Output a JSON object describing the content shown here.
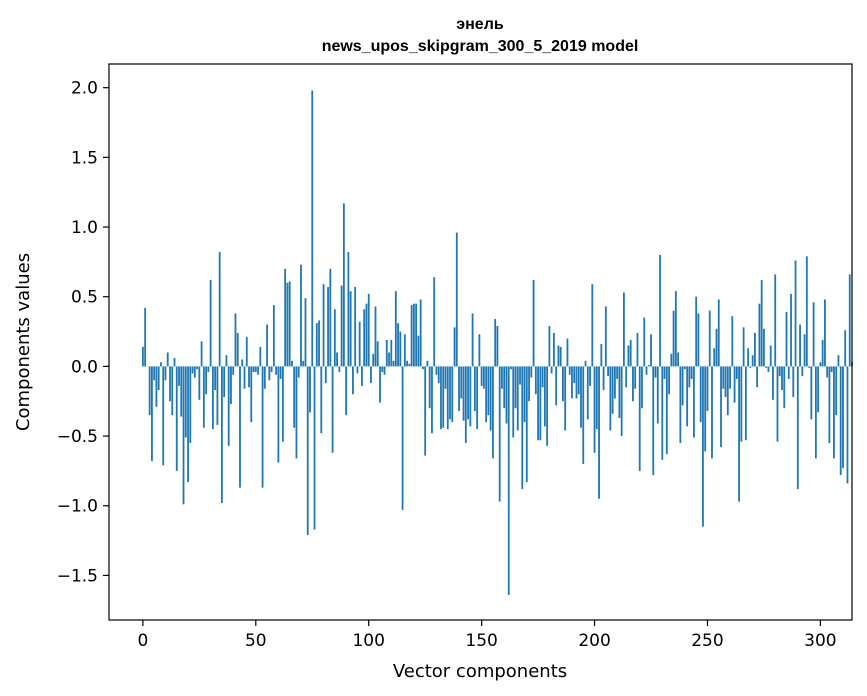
{
  "chart_data": {
    "type": "bar",
    "title_line1": "энель",
    "title_line2": "news_upos_skipgram_300_5_2019 model",
    "xlabel": "Vector components",
    "ylabel": "Components values",
    "xlim": [
      -15,
      314
    ],
    "ylim": [
      -1.82,
      2.17
    ],
    "xticks": [
      0,
      50,
      100,
      150,
      200,
      250,
      300
    ],
    "xtick_labels": [
      "0",
      "50",
      "100",
      "150",
      "200",
      "250",
      "300"
    ],
    "yticks": [
      -1.5,
      -1.0,
      -0.5,
      0.0,
      0.5,
      1.0,
      1.5,
      2.0
    ],
    "ytick_labels": [
      "−1.5",
      "−1.0",
      "−0.5",
      "0.0",
      "0.5",
      "1.0",
      "1.5",
      "2.0"
    ],
    "bar_color": "#1f77b4",
    "grid": false,
    "values": [
      0.14,
      0.42,
      0.0,
      -0.35,
      -0.68,
      -0.1,
      -0.29,
      -0.17,
      0.03,
      -0.71,
      -0.1,
      0.1,
      -0.25,
      -0.35,
      0.06,
      -0.75,
      -0.14,
      -0.36,
      -0.99,
      -0.51,
      -0.83,
      -0.55,
      -0.05,
      -0.08,
      -0.02,
      -0.24,
      0.18,
      -0.44,
      -0.2,
      -0.04,
      0.62,
      -0.45,
      -0.17,
      -0.42,
      0.82,
      -0.98,
      -0.22,
      0.08,
      -0.57,
      -0.27,
      -0.06,
      0.38,
      0.24,
      -0.87,
      0.05,
      -0.16,
      0.21,
      -0.15,
      -0.4,
      -0.04,
      -0.04,
      -0.06,
      0.14,
      -0.87,
      -0.16,
      0.3,
      -0.1,
      -0.04,
      0.44,
      -0.06,
      -0.69,
      -0.09,
      -0.54,
      0.7,
      0.6,
      0.61,
      0.04,
      -0.44,
      -0.66,
      -0.08,
      0.73,
      0.04,
      0.49,
      -1.21,
      -0.33,
      1.98,
      -1.17,
      0.31,
      0.33,
      -0.48,
      0.59,
      -0.12,
      0.57,
      0.7,
      -0.62,
      0.41,
      0.1,
      -0.04,
      0.58,
      1.17,
      -0.35,
      0.82,
      0.54,
      -0.2,
      0.57,
      -0.05,
      0.32,
      -0.14,
      0.41,
      0.45,
      0.52,
      -0.12,
      0.09,
      0.43,
      0.18,
      -0.26,
      -0.04,
      -0.06,
      0.19,
      0.1,
      0.19,
      0.04,
      0.54,
      0.31,
      0.25,
      -1.03,
      0.23,
      0.04,
      0.02,
      0.44,
      0.45,
      0.45,
      0.22,
      0.48,
      -0.02,
      -0.64,
      0.04,
      -0.3,
      -0.48,
      0.64,
      -0.06,
      -0.12,
      -0.45,
      -0.44,
      -0.16,
      -0.45,
      -0.38,
      -0.4,
      0.28,
      0.96,
      -0.32,
      -0.23,
      -0.39,
      -0.55,
      -0.38,
      -0.43,
      0.38,
      -0.32,
      -0.45,
      0.23,
      -0.14,
      -0.16,
      -0.4,
      -0.35,
      -0.46,
      -0.66,
      0.34,
      0.29,
      -0.97,
      -0.16,
      -0.3,
      -0.41,
      -1.64,
      -0.02,
      -0.51,
      -0.3,
      -0.46,
      -0.13,
      -0.88,
      -0.4,
      -0.83,
      -0.25,
      -0.08,
      0.62,
      -0.2,
      -0.53,
      -0.53,
      -0.15,
      -0.43,
      -0.57,
      0.29,
      -0.05,
      0.24,
      -0.28,
      0.15,
      0.14,
      -0.25,
      -0.46,
      0.2,
      -0.06,
      -0.23,
      -0.12,
      -0.23,
      -0.2,
      -0.44,
      -0.7,
      0.04,
      -0.38,
      -0.14,
      0.59,
      -0.62,
      -0.45,
      -0.95,
      0.16,
      -0.17,
      0.43,
      -0.07,
      -0.46,
      -0.34,
      -0.23,
      -0.09,
      -0.37,
      -0.5,
      0.53,
      -0.15,
      0.15,
      0.19,
      -0.25,
      -0.16,
      0.24,
      -0.75,
      -0.3,
      0.35,
      -0.06,
      0.01,
      0.23,
      -0.78,
      -0.08,
      -0.41,
      0.8,
      -0.67,
      -0.09,
      -0.63,
      -0.2,
      0.09,
      0.4,
      0.54,
      0.1,
      -0.55,
      -0.28,
      -0.02,
      -0.43,
      -0.15,
      -0.09,
      -0.51,
      0.5,
      0.38,
      -0.4,
      -1.15,
      -0.61,
      -0.32,
      0.4,
      -0.66,
      0.13,
      0.27,
      0.48,
      -0.58,
      -0.16,
      -0.22,
      -0.35,
      -0.16,
      0.36,
      -0.26,
      -0.09,
      -0.97,
      -0.54,
      0.28,
      -0.53,
      0.13,
      -0.01,
      0.08,
      0.24,
      -0.15,
      0.45,
      0.62,
      0.27,
      -0.01,
      -0.04,
      0.15,
      -0.24,
      0.66,
      -0.54,
      -0.07,
      -0.17,
      -0.3,
      0.39,
      -0.09,
      0.52,
      -0.22,
      0.76,
      -0.88,
      0.3,
      -0.07,
      0.23,
      0.79,
      -0.01,
      -0.38,
      0.46,
      -0.66,
      -0.33,
      0.03,
      0.19,
      0.48,
      -0.08,
      -0.55,
      -0.04,
      -0.66,
      -0.35,
      0.08,
      -0.78,
      -0.73,
      0.26,
      -0.84,
      0.66,
      0.03
    ]
  }
}
